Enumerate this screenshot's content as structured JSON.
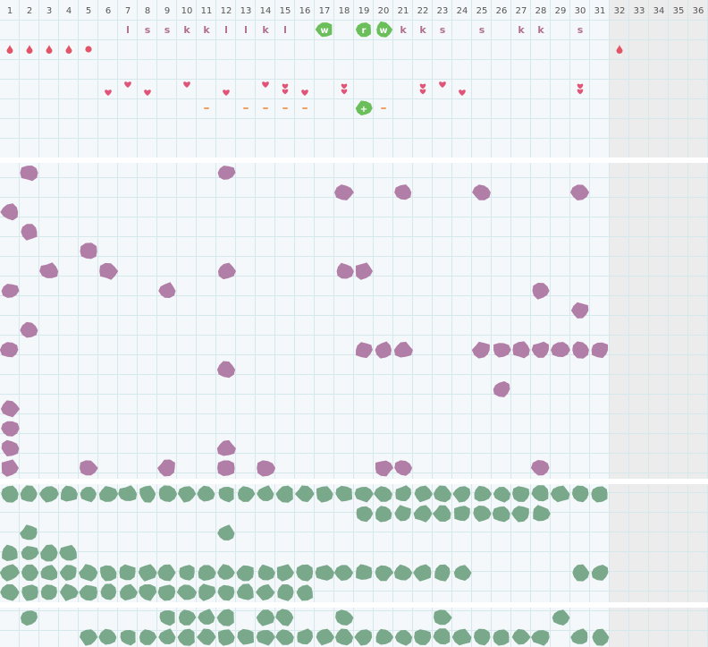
{
  "calendar": {
    "days": [
      "1",
      "2",
      "3",
      "4",
      "5",
      "6",
      "7",
      "8",
      "9",
      "10",
      "11",
      "12",
      "13",
      "14",
      "15",
      "16",
      "17",
      "18",
      "19",
      "20",
      "21",
      "22",
      "23",
      "24",
      "25",
      "26",
      "27",
      "28",
      "29",
      "30",
      "31",
      "32",
      "33",
      "34",
      "35",
      "36"
    ],
    "active_days": 31
  },
  "colors": {
    "grid_line": "#d5e8ec",
    "cell_bg": "#f5f8fa",
    "inactive_bg": "#ececec",
    "separator": "#ffffff",
    "letter": "#b07090",
    "drop": "#e05567",
    "heart": "#e05577",
    "dash": "#f0a060",
    "green_badge": "#6abf5a",
    "purple_blob": "#b07ea6",
    "green_blob": "#7aa88a"
  },
  "marks": {
    "letters": [
      {
        "day": 7,
        "text": "l"
      },
      {
        "day": 8,
        "text": "s"
      },
      {
        "day": 9,
        "text": "s"
      },
      {
        "day": 10,
        "text": "k"
      },
      {
        "day": 11,
        "text": "k"
      },
      {
        "day": 12,
        "text": "l"
      },
      {
        "day": 13,
        "text": "l"
      },
      {
        "day": 14,
        "text": "k"
      },
      {
        "day": 15,
        "text": "l"
      },
      {
        "day": 21,
        "text": "k"
      },
      {
        "day": 22,
        "text": "k"
      },
      {
        "day": 23,
        "text": "s"
      },
      {
        "day": 25,
        "text": "s"
      },
      {
        "day": 27,
        "text": "k"
      },
      {
        "day": 28,
        "text": "k"
      },
      {
        "day": 30,
        "text": "s"
      }
    ],
    "badges": [
      {
        "day": 17,
        "row": 0,
        "text": "w"
      },
      {
        "day": 19,
        "row": 0,
        "text": "r"
      },
      {
        "day": 20,
        "row": 0,
        "text": "w"
      },
      {
        "day": 19,
        "row": 4,
        "text": "+"
      }
    ],
    "drops": [
      {
        "day": 1,
        "type": "drop"
      },
      {
        "day": 2,
        "type": "drop"
      },
      {
        "day": 3,
        "type": "drop"
      },
      {
        "day": 4,
        "type": "drop"
      },
      {
        "day": 5,
        "type": "dot"
      },
      {
        "day": 32,
        "type": "drop"
      }
    ],
    "hearts": [
      {
        "day": 6,
        "n": 1,
        "pos": "low"
      },
      {
        "day": 7,
        "n": 1,
        "pos": "high"
      },
      {
        "day": 8,
        "n": 1,
        "pos": "low"
      },
      {
        "day": 10,
        "n": 1,
        "pos": "high"
      },
      {
        "day": 12,
        "n": 1,
        "pos": "low"
      },
      {
        "day": 14,
        "n": 1,
        "pos": "high"
      },
      {
        "day": 15,
        "n": 2,
        "pos": "mid"
      },
      {
        "day": 16,
        "n": 1,
        "pos": "low"
      },
      {
        "day": 18,
        "n": 2,
        "pos": "mid"
      },
      {
        "day": 22,
        "n": 2,
        "pos": "mid"
      },
      {
        "day": 23,
        "n": 1,
        "pos": "high"
      },
      {
        "day": 24,
        "n": 1,
        "pos": "low"
      },
      {
        "day": 30,
        "n": 2,
        "pos": "mid"
      }
    ],
    "dashes": [
      11,
      13,
      14,
      15,
      16,
      20
    ]
  },
  "sections": [
    {
      "name": "purple",
      "color": "purple_blob",
      "rows": [
        [
          2,
          12
        ],
        [
          18,
          21,
          25,
          30
        ],
        [
          1
        ],
        [
          2
        ],
        [
          5
        ],
        [
          3,
          6,
          12,
          18,
          19
        ],
        [
          1,
          9,
          28
        ],
        [
          30
        ],
        [
          2
        ],
        [
          1,
          19,
          20,
          21,
          25,
          26,
          27,
          28,
          29,
          30,
          31
        ],
        [
          12
        ],
        [
          26
        ],
        [
          1
        ],
        [
          1
        ],
        [
          1,
          12
        ],
        [
          1,
          5,
          9,
          12,
          14,
          20,
          21,
          28
        ]
      ]
    },
    {
      "name": "green",
      "color": "green_blob",
      "rows": [
        [
          1,
          2,
          3,
          4,
          5,
          6,
          7,
          8,
          9,
          10,
          11,
          12,
          13,
          14,
          15,
          16,
          17,
          18,
          19,
          20,
          21,
          22,
          23,
          24,
          25,
          26,
          27,
          28,
          29,
          30,
          31
        ],
        [
          19,
          20,
          21,
          22,
          23,
          24,
          25,
          26,
          27,
          28
        ],
        [
          2,
          12
        ],
        [
          1,
          2,
          3,
          4
        ],
        [
          1,
          2,
          3,
          4,
          5,
          6,
          7,
          8,
          9,
          10,
          11,
          12,
          13,
          14,
          15,
          16,
          17,
          18,
          19,
          20,
          21,
          22,
          23,
          24,
          30,
          31
        ],
        [
          1,
          2,
          3,
          4,
          5,
          6,
          7,
          8,
          9,
          10,
          11,
          12,
          13,
          14,
          15,
          16
        ]
      ]
    },
    {
      "name": "green-bottom",
      "color": "green_blob",
      "rows": [
        [
          2,
          9,
          10,
          11,
          12,
          14,
          15,
          18,
          23,
          29
        ],
        [
          5,
          6,
          7,
          8,
          9,
          10,
          11,
          12,
          13,
          14,
          15,
          16,
          17,
          18,
          19,
          20,
          21,
          22,
          23,
          24,
          25,
          26,
          27,
          28,
          30,
          31
        ]
      ]
    }
  ]
}
